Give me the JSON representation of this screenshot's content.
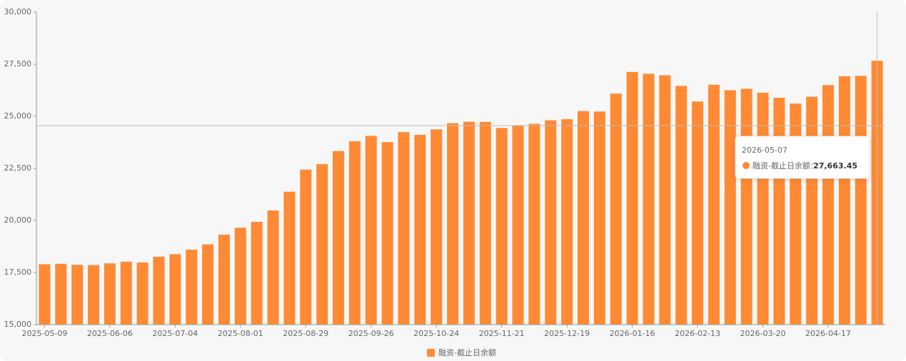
{
  "chart_data": {
    "type": "bar",
    "categories": [
      "2025-05-09",
      null,
      null,
      null,
      "2025-06-06",
      null,
      null,
      null,
      "2025-07-04",
      null,
      null,
      null,
      "2025-08-01",
      null,
      null,
      null,
      "2025-08-29",
      null,
      null,
      null,
      "2025-09-26",
      null,
      null,
      null,
      "2025-10-24",
      null,
      null,
      null,
      "2025-11-21",
      null,
      null,
      null,
      "2025-12-19",
      null,
      null,
      null,
      "2026-01-16",
      null,
      null,
      null,
      "2026-02-13",
      null,
      null,
      null,
      "2026-03-20",
      null,
      null,
      null,
      "2026-04-17",
      null,
      null,
      null
    ],
    "series": [
      {
        "name": "融资-截止日余额",
        "color": "#ff8a33",
        "values": [
          17900,
          17920,
          17870,
          17860,
          17940,
          18020,
          17980,
          18260,
          18380,
          18600,
          18850,
          19320,
          19650,
          19930,
          20480,
          21380,
          22440,
          22700,
          23330,
          23800,
          24060,
          23760,
          24240,
          24110,
          24370,
          24670,
          24740,
          24730,
          24440,
          24560,
          24640,
          24810,
          24860,
          25250,
          25230,
          26090,
          27130,
          27040,
          26970,
          26460,
          25710,
          26510,
          26250,
          26320,
          26130,
          25890,
          25610,
          25940,
          26500,
          26920,
          26940,
          27663.45
        ]
      }
    ],
    "ylim": [
      15000,
      30000
    ],
    "yticks": [
      {
        "value": 15000,
        "label": "15,000"
      },
      {
        "value": 17500,
        "label": "17,500"
      },
      {
        "value": 20000,
        "label": "20,000"
      },
      {
        "value": 22500,
        "label": "22,500"
      },
      {
        "value": 25000,
        "label": "25,000"
      },
      {
        "value": 27500,
        "label": "27,500"
      },
      {
        "value": 30000,
        "label": "30,000"
      }
    ],
    "grid": false,
    "legend": "bottom",
    "tooltip": {
      "title": "2026-05-07",
      "label": "融资-截止日余额：",
      "value": 27663.45,
      "value_label": "27,663.45"
    }
  }
}
